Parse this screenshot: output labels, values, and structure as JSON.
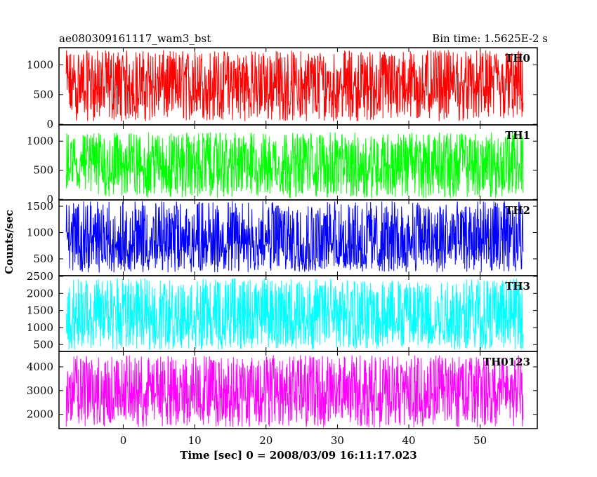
{
  "chart_data": {
    "type": "line",
    "title_left": "ae080309161117_wam3_bst",
    "title_right": "Bin time: 1.5625E-2 s",
    "xlabel": "Time [sec] 0 = 2008/03/09 16:11:17.023",
    "ylabel": "Counts/sec",
    "grid": false,
    "xlim": [
      -9,
      58
    ],
    "x_data_range": [
      -8,
      56
    ],
    "x_ticks": [
      0,
      10,
      20,
      30,
      40,
      50
    ],
    "x_tick_labels": [
      "0",
      "10",
      "20",
      "30",
      "40",
      "50"
    ],
    "panels": [
      {
        "name": "TH0",
        "color": "#ff0000",
        "ylim": [
          -10,
          1290
        ],
        "y_ticks": [
          0,
          500,
          1000
        ],
        "y_tick_labels": [
          "0",
          "500",
          "1000"
        ],
        "value_range": [
          50,
          1250
        ],
        "mean": 600
      },
      {
        "name": "TH1",
        "color": "#00ff00",
        "ylim": [
          -10,
          1280
        ],
        "y_ticks": [
          0,
          500,
          1000
        ],
        "y_tick_labels": [
          "0",
          "500",
          "1000"
        ],
        "value_range": [
          20,
          1150
        ],
        "mean": 560
      },
      {
        "name": "TH2",
        "color": "#0000ff",
        "ylim": [
          180,
          1620
        ],
        "y_ticks": [
          500,
          1000,
          1500
        ],
        "y_tick_labels": [
          "500",
          "1000",
          "1500"
        ],
        "value_range": [
          240,
          1600
        ],
        "mean": 750
      },
      {
        "name": "TH3",
        "color": "#00ffff",
        "ylim": [
          300,
          2520
        ],
        "y_ticks": [
          500,
          1000,
          1500,
          2000,
          2500
        ],
        "y_tick_labels": [
          "500",
          "1000",
          "1500",
          "2000",
          "2500"
        ],
        "value_range": [
          350,
          2450
        ],
        "mean": 1250
      },
      {
        "name": "TH0123",
        "color": "#ff00ff",
        "ylim": [
          1400,
          4650
        ],
        "y_ticks": [
          2000,
          3000,
          4000
        ],
        "y_tick_labels": [
          "2000",
          "3000",
          "4000"
        ],
        "value_range": [
          1450,
          4500
        ],
        "mean": 2800
      }
    ]
  }
}
